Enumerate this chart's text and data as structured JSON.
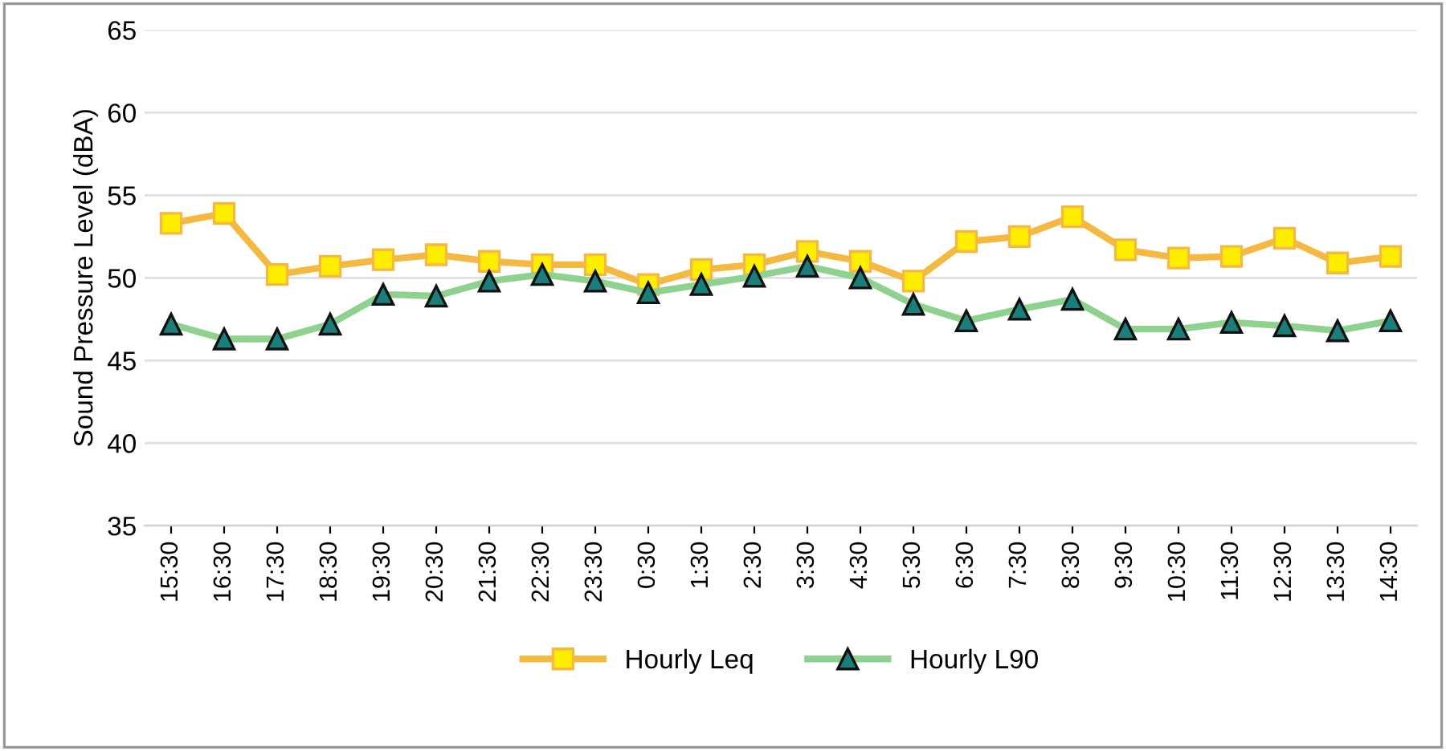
{
  "chart_data": {
    "type": "line",
    "ylabel": "Sound Pressure Level (dBA)",
    "categories": [
      "15:30",
      "16:30",
      "17:30",
      "18:30",
      "19:30",
      "20:30",
      "21:30",
      "22:30",
      "23:30",
      "0:30",
      "1:30",
      "2:30",
      "3:30",
      "4:30",
      "5:30",
      "6:30",
      "7:30",
      "8:30",
      "9:30",
      "10:30",
      "11:30",
      "12:30",
      "13:30",
      "14:30"
    ],
    "series": [
      {
        "name": "Hourly Leq",
        "color": "#f5b942",
        "marker": "square",
        "values": [
          53.3,
          53.9,
          50.2,
          50.7,
          51.1,
          51.4,
          51.0,
          50.8,
          50.8,
          49.6,
          50.5,
          50.8,
          51.6,
          51.0,
          49.8,
          52.2,
          52.5,
          53.7,
          51.7,
          51.2,
          51.3,
          52.4,
          50.9,
          51.3
        ]
      },
      {
        "name": "Hourly L90",
        "color": "#8fd18f",
        "marker": "triangle",
        "values": [
          47.2,
          46.3,
          46.3,
          47.2,
          49.0,
          48.9,
          49.8,
          50.2,
          49.8,
          49.1,
          49.6,
          50.1,
          50.7,
          50.0,
          48.4,
          47.4,
          48.1,
          48.7,
          46.9,
          46.9,
          47.3,
          47.1,
          46.8,
          47.4
        ]
      }
    ],
    "ylim": [
      35,
      65
    ],
    "yticks": [
      35,
      40,
      45,
      50,
      55,
      60,
      65
    ],
    "grid": "y",
    "legend": "bottom",
    "line_style": "solid"
  }
}
